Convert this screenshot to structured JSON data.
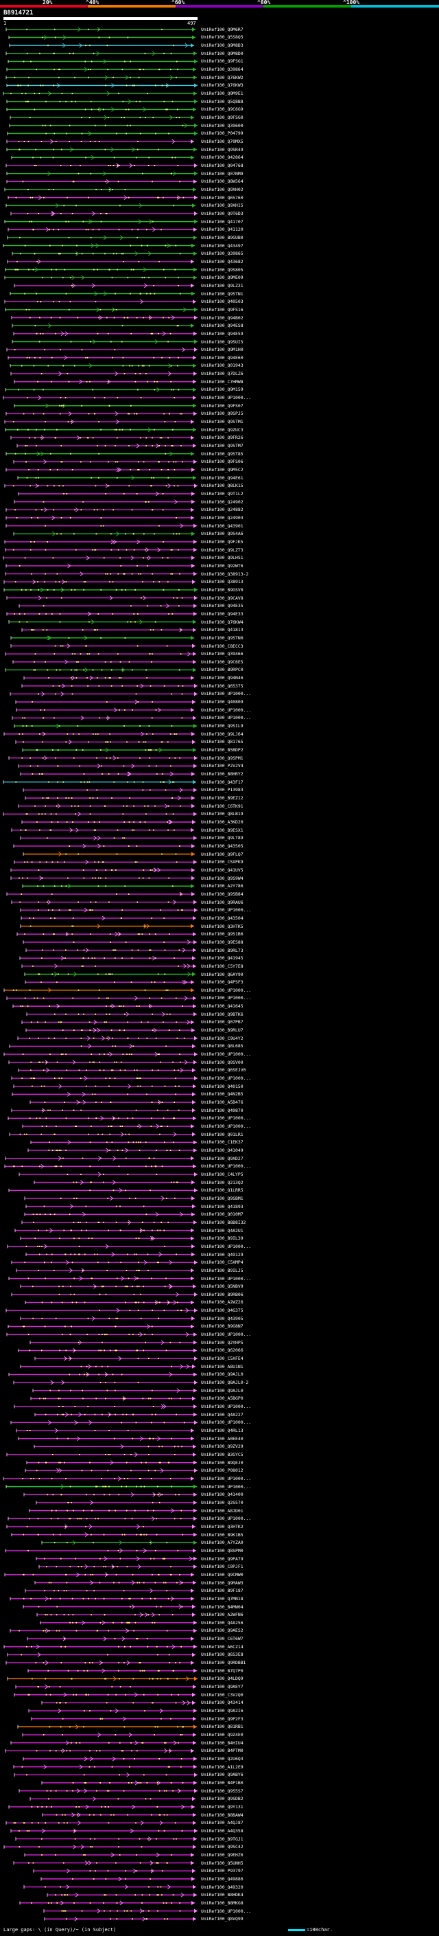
{
  "scale": {
    "labels": [
      "20%",
      "^40%",
      "^60%",
      "^80%",
      "^100%"
    ],
    "colors": {
      "p20": "#e8001c",
      "p40": "#f07a00",
      "p60": "#8a00c0",
      "p80": "#00a000",
      "p100": "#00bcd4"
    }
  },
  "query": {
    "id": "B8914721",
    "start": "1",
    "end": "497"
  },
  "palette": {
    "identity_colors": [
      "#ff7700",
      "#dd22dd",
      "#22bb22",
      "#33ccdd"
    ],
    "dot_color": "#ffff66",
    "arrow_color": "#ff88ff"
  },
  "hits": [
    {
      "label": "UniRef100_Q9M6R7",
      "color": "#22bb22"
    },
    {
      "label": "UniRef100_Q5S8Q5",
      "color": "#22bb22"
    },
    {
      "label": "UniRef100_Q9M8D3",
      "color": "#33ccdd"
    },
    {
      "label": "UniRef100_Q9M8D0",
      "color": "#22bb22"
    },
    {
      "label": "UniRef100_Q9FSG1",
      "color": "#22bb22"
    },
    {
      "label": "UniRef100_Q39864",
      "color": "#22bb22"
    },
    {
      "label": "UniRef100_Q76KW2",
      "color": "#22bb22"
    },
    {
      "label": "UniRef100_Q76KW3",
      "color": "#33ccdd"
    },
    {
      "label": "UniRef100_Q9M9E1",
      "color": "#22bb22"
    },
    {
      "label": "UniRef100_Q5Q8B8",
      "color": "#22bb22"
    },
    {
      "label": "UniRef100_Q9C6G9",
      "color": "#22bb22"
    },
    {
      "label": "UniRef100_Q9FSG0",
      "color": "#22bb22"
    },
    {
      "label": "UniRef100_Q39600",
      "color": "#22bb22"
    },
    {
      "label": "UniRef100_P04799",
      "color": "#22bb22"
    },
    {
      "label": "UniRef100_Q70MX5",
      "color": "#dd22dd"
    },
    {
      "label": "UniRef100_Q9SR49",
      "color": "#22bb22"
    },
    {
      "label": "UniRef100_Q42864",
      "color": "#22bb22"
    },
    {
      "label": "UniRef100_Q04768",
      "color": "#dd22dd"
    },
    {
      "label": "UniRef100_Q07NM9",
      "color": "#22bb22"
    },
    {
      "label": "UniRef100_Q8W564",
      "color": "#dd22dd"
    },
    {
      "label": "UniRef100_Q9XH02",
      "color": "#22bb22"
    },
    {
      "label": "UniRef100_Q65760",
      "color": "#dd22dd"
    },
    {
      "label": "UniRef100_Q9XH15",
      "color": "#22bb22"
    },
    {
      "label": "UniRef100_Q9T6D3",
      "color": "#dd22dd"
    },
    {
      "label": "UniRef100_Q41707",
      "color": "#22bb22"
    },
    {
      "label": "UniRef100_Q41120",
      "color": "#dd22dd"
    },
    {
      "label": "UniRef100_B9GUB0",
      "color": "#22bb22"
    },
    {
      "label": "UniRef100_Q43497",
      "color": "#22bb22"
    },
    {
      "label": "UniRef100_Q39865",
      "color": "#22bb22"
    },
    {
      "label": "UniRef100_Q43682",
      "color": "#dd22dd"
    },
    {
      "label": "UniRef100_Q9S805",
      "color": "#22bb22"
    },
    {
      "label": "UniRef100_Q9ME09",
      "color": "#22bb22"
    },
    {
      "label": "UniRef100_Q9LZ31",
      "color": "#dd22dd"
    },
    {
      "label": "UniRef100_Q9STN1",
      "color": "#22bb22"
    },
    {
      "label": "UniRef100_Q40503",
      "color": "#dd22dd"
    },
    {
      "label": "UniRef100_Q9FS16",
      "color": "#22bb22"
    },
    {
      "label": "UniRef100_Q94B02",
      "color": "#dd22dd"
    },
    {
      "label": "UniRef100_Q94ES8",
      "color": "#22bb22"
    },
    {
      "label": "UniRef100_Q94E59",
      "color": "#dd22dd"
    },
    {
      "label": "UniRef100_Q9SUI5",
      "color": "#22bb22"
    },
    {
      "label": "UniRef100_Q9M1H0",
      "color": "#dd22dd"
    },
    {
      "label": "UniRef100_Q94E60",
      "color": "#dd22dd"
    },
    {
      "label": "UniRef100_Q01943",
      "color": "#22bb22"
    },
    {
      "label": "UniRef100_Q7DLZ6",
      "color": "#dd22dd"
    },
    {
      "label": "UniRef100_C7HMW8",
      "color": "#dd22dd"
    },
    {
      "label": "UniRef100_Q9M159",
      "color": "#22bb22"
    },
    {
      "label": "UniRef100_UP1000...",
      "color": "#dd22dd"
    },
    {
      "label": "UniRef100_Q9FS07",
      "color": "#22bb22"
    },
    {
      "label": "UniRef100_Q9SPJ5",
      "color": "#dd22dd"
    },
    {
      "label": "UniRef100_Q9STM1",
      "color": "#dd22dd"
    },
    {
      "label": "UniRef100_Q9ZUC3",
      "color": "#22bb22"
    },
    {
      "label": "UniRef100_Q9FR26",
      "color": "#dd22dd"
    },
    {
      "label": "UniRef100_Q9STM7",
      "color": "#dd22dd"
    },
    {
      "label": "UniRef100_Q9ST85",
      "color": "#22bb22"
    },
    {
      "label": "UniRef100_Q9FS06",
      "color": "#dd22dd"
    },
    {
      "label": "UniRef100_Q9M5C2",
      "color": "#dd22dd"
    },
    {
      "label": "UniRef100_Q94E61",
      "color": "#22bb22"
    },
    {
      "label": "UniRef100_Q8LK15",
      "color": "#dd22dd"
    },
    {
      "label": "UniRef100_Q9T1L2",
      "color": "#dd22dd"
    },
    {
      "label": "UniRef100_Q24902",
      "color": "#dd22dd"
    },
    {
      "label": "UniRef100_Q24882",
      "color": "#dd22dd"
    },
    {
      "label": "UniRef100_Q24903",
      "color": "#dd22dd"
    },
    {
      "label": "UniRef100_Q43901",
      "color": "#dd22dd"
    },
    {
      "label": "UniRef100_Q9S4A6",
      "color": "#22bb22"
    },
    {
      "label": "UniRef100_Q9FJK5",
      "color": "#dd22dd"
    },
    {
      "label": "UniRef100_Q9LZT3",
      "color": "#dd22dd"
    },
    {
      "label": "UniRef100_Q9LHS1",
      "color": "#dd22dd"
    },
    {
      "label": "UniRef100_Q92WT6",
      "color": "#dd22dd"
    },
    {
      "label": "UniRef100_Q38913-2",
      "color": "#dd22dd"
    },
    {
      "label": "UniRef100_Q38913",
      "color": "#dd22dd"
    },
    {
      "label": "UniRef100_B9GSV0",
      "color": "#22bb22"
    },
    {
      "label": "UniRef100_Q9CAV8",
      "color": "#dd22dd"
    },
    {
      "label": "UniRef100_Q94E35",
      "color": "#dd22dd"
    },
    {
      "label": "UniRef100_Q94E33",
      "color": "#dd22dd"
    },
    {
      "label": "UniRef100_Q76KW4",
      "color": "#22bb22"
    },
    {
      "label": "UniRef100_Q41813",
      "color": "#dd22dd"
    },
    {
      "label": "UniRef100_Q9STN0",
      "color": "#22bb22"
    },
    {
      "label": "UniRef100_C8ECC3",
      "color": "#dd22dd"
    },
    {
      "label": "UniRef100_Q39466",
      "color": "#dd22dd"
    },
    {
      "label": "UniRef100_Q9C6E5",
      "color": "#dd22dd"
    },
    {
      "label": "UniRef100_B9RPC0",
      "color": "#22bb22"
    },
    {
      "label": "UniRef100_Q94N46",
      "color": "#dd22dd"
    },
    {
      "label": "UniRef100_Q65375",
      "color": "#dd22dd"
    },
    {
      "label": "UniRef100_UP1000...",
      "color": "#dd22dd"
    },
    {
      "label": "UniRef100_Q40809",
      "color": "#dd22dd"
    },
    {
      "label": "UniRef100_UP1000...",
      "color": "#dd22dd"
    },
    {
      "label": "UniRef100_UP1000...",
      "color": "#dd22dd"
    },
    {
      "label": "UniRef100_Q9SIL9",
      "color": "#22bb22"
    },
    {
      "label": "UniRef100_Q9LJ64",
      "color": "#dd22dd"
    },
    {
      "label": "UniRef100_Q81765",
      "color": "#dd22dd"
    },
    {
      "label": "UniRef100_B5BDP2",
      "color": "#22bb22"
    },
    {
      "label": "UniRef100_Q9SPM1",
      "color": "#dd22dd"
    },
    {
      "label": "UniRef100_P2V2V4",
      "color": "#dd22dd"
    },
    {
      "label": "UniRef100_B8HRY2",
      "color": "#dd22dd"
    },
    {
      "label": "UniRef100_Q43F17",
      "color": "#33ccdd"
    },
    {
      "label": "UniRef100_P13983",
      "color": "#dd22dd"
    },
    {
      "label": "UniRef100_B9EZ12",
      "color": "#dd22dd"
    },
    {
      "label": "UniRef100_C6TK91",
      "color": "#dd22dd"
    },
    {
      "label": "UniRef100_Q8LB19",
      "color": "#dd22dd"
    },
    {
      "label": "UniRef100_A3KD20",
      "color": "#dd22dd"
    },
    {
      "label": "UniRef100_B9ESX1",
      "color": "#dd22dd"
    },
    {
      "label": "UniRef100_Q9LT89",
      "color": "#dd22dd"
    },
    {
      "label": "UniRef100_Q43505",
      "color": "#dd22dd"
    },
    {
      "label": "UniRef100_Q9FLQ7",
      "color": "#ff7700"
    },
    {
      "label": "UniRef100_C5XPK9",
      "color": "#dd22dd"
    },
    {
      "label": "UniRef100_Q41UV5",
      "color": "#dd22dd"
    },
    {
      "label": "UniRef100_Q9S9W4",
      "color": "#dd22dd"
    },
    {
      "label": "UniRef100_A2Y786",
      "color": "#22bb22"
    },
    {
      "label": "UniRef100_Q9SB84",
      "color": "#dd22dd"
    },
    {
      "label": "UniRef100_Q9RAU6",
      "color": "#dd22dd"
    },
    {
      "label": "UniRef100_UP1000...",
      "color": "#dd22dd"
    },
    {
      "label": "UniRef100_Q43504",
      "color": "#dd22dd"
    },
    {
      "label": "UniRef100_Q3HTK5",
      "color": "#ff7700"
    },
    {
      "label": "UniRef100_Q9S1B6",
      "color": "#dd22dd"
    },
    {
      "label": "UniRef100_Q9ES88",
      "color": "#dd22dd"
    },
    {
      "label": "UniRef100_B9RL73",
      "color": "#dd22dd"
    },
    {
      "label": "UniRef100_Q41945",
      "color": "#dd22dd"
    },
    {
      "label": "UniRef100_C5Y7E8",
      "color": "#dd22dd"
    },
    {
      "label": "UniRef100_Q6AY90",
      "color": "#22bb22"
    },
    {
      "label": "UniRef100_Q4PSF3",
      "color": "#dd22dd"
    },
    {
      "label": "UniRef100_UP1000...",
      "color": "#ff7700"
    },
    {
      "label": "UniRef100_UP1000...",
      "color": "#dd22dd"
    },
    {
      "label": "UniRef100_Q41645",
      "color": "#dd22dd"
    },
    {
      "label": "UniRef100_Q9BTK6",
      "color": "#dd22dd"
    },
    {
      "label": "UniRef100_Q07PB7",
      "color": "#dd22dd"
    },
    {
      "label": "UniRef100_B9RLU7",
      "color": "#dd22dd"
    },
    {
      "label": "UniRef100_C9U4Y2",
      "color": "#dd22dd"
    },
    {
      "label": "UniRef100_Q8L685",
      "color": "#dd22dd"
    },
    {
      "label": "UniRef100_UP1000...",
      "color": "#dd22dd"
    },
    {
      "label": "UniRef100_Q9SV00",
      "color": "#dd22dd"
    },
    {
      "label": "UniRef100_Q6SEJV0",
      "color": "#dd22dd"
    },
    {
      "label": "UniRef100_UP1000...",
      "color": "#dd22dd"
    },
    {
      "label": "UniRef100_Q40150",
      "color": "#dd22dd"
    },
    {
      "label": "UniRef100_Q4N2B5",
      "color": "#dd22dd"
    },
    {
      "label": "UniRef100_A5B476",
      "color": "#dd22dd"
    },
    {
      "label": "UniRef100_Q49870",
      "color": "#dd22dd"
    },
    {
      "label": "UniRef100_UP1000...",
      "color": "#dd22dd"
    },
    {
      "label": "UniRef100_UP1000...",
      "color": "#dd22dd"
    },
    {
      "label": "UniRef100_Q01LR1",
      "color": "#dd22dd"
    },
    {
      "label": "UniRef100_C1EK37",
      "color": "#dd22dd"
    },
    {
      "label": "UniRef100_Q41049",
      "color": "#dd22dd"
    },
    {
      "label": "UniRef100_Q9XD27",
      "color": "#dd22dd"
    },
    {
      "label": "UniRef100_UP1000...",
      "color": "#dd22dd"
    },
    {
      "label": "UniRef100_C4LYP5",
      "color": "#dd22dd"
    },
    {
      "label": "UniRef100_Q213Q2",
      "color": "#dd22dd"
    },
    {
      "label": "UniRef100_Q1LRR5",
      "color": "#dd22dd"
    },
    {
      "label": "UniRef100_Q9SBM1",
      "color": "#dd22dd"
    },
    {
      "label": "UniRef100_Q41893",
      "color": "#dd22dd"
    },
    {
      "label": "UniRef100_Q010M7",
      "color": "#dd22dd"
    },
    {
      "label": "UniRef100_B8B8I32",
      "color": "#dd22dd"
    },
    {
      "label": "UniRef100_Q4A2U1",
      "color": "#dd22dd"
    },
    {
      "label": "UniRef100_B9IL39",
      "color": "#dd22dd"
    },
    {
      "label": "UniRef100_UP1000...",
      "color": "#dd22dd"
    },
    {
      "label": "UniRef100_Q49129",
      "color": "#dd22dd"
    },
    {
      "label": "UniRef100_C5XMP4",
      "color": "#dd22dd"
    },
    {
      "label": "UniRef100_B9ILJ5",
      "color": "#dd22dd"
    },
    {
      "label": "UniRef100_UP1000...",
      "color": "#dd22dd"
    },
    {
      "label": "UniRef100_Q5NBV9",
      "color": "#dd22dd"
    },
    {
      "label": "UniRef100_B9RB06",
      "color": "#dd22dd"
    },
    {
      "label": "UniRef100_A2WZ26",
      "color": "#dd22dd"
    },
    {
      "label": "UniRef100_Q4G375",
      "color": "#dd22dd"
    },
    {
      "label": "UniRef100_Q43905",
      "color": "#dd22dd"
    },
    {
      "label": "UniRef100_B9G8N7",
      "color": "#dd22dd"
    },
    {
      "label": "UniRef100_UP1000...",
      "color": "#dd22dd"
    },
    {
      "label": "UniRef100_Q2YHP5",
      "color": "#dd22dd"
    },
    {
      "label": "UniRef100_Q62066",
      "color": "#dd22dd"
    },
    {
      "label": "UniRef100_C5XFE4",
      "color": "#dd22dd"
    },
    {
      "label": "UniRef100_A8U1N1",
      "color": "#dd22dd"
    },
    {
      "label": "UniRef100_Q9AJL0",
      "color": "#dd22dd"
    },
    {
      "label": "UniRef100_Q8AJL0-2",
      "color": "#dd22dd"
    },
    {
      "label": "UniRef100_Q9AJL0",
      "color": "#dd22dd"
    },
    {
      "label": "UniRef100_A5BGP0",
      "color": "#dd22dd"
    },
    {
      "label": "UniRef100_UP1000...",
      "color": "#dd22dd"
    },
    {
      "label": "UniRef100_Q4A227",
      "color": "#dd22dd"
    },
    {
      "label": "UniRef100_UP1000...",
      "color": "#dd22dd"
    },
    {
      "label": "UniRef100_Q4RL13",
      "color": "#dd22dd"
    },
    {
      "label": "UniRef100_A0EE40",
      "color": "#dd22dd"
    },
    {
      "label": "UniRef100_Q9ZV29",
      "color": "#dd22dd"
    },
    {
      "label": "UniRef100_B3GYC5",
      "color": "#dd22dd"
    },
    {
      "label": "UniRef100_B9QEJ0",
      "color": "#dd22dd"
    },
    {
      "label": "UniRef100_P08012",
      "color": "#dd22dd"
    },
    {
      "label": "UniRef100_UP1000...",
      "color": "#dd22dd"
    },
    {
      "label": "UniRef100_UP1000...",
      "color": "#22bb22"
    },
    {
      "label": "UniRef100_Q41400",
      "color": "#dd22dd"
    },
    {
      "label": "UniRef100_Q2S570",
      "color": "#dd22dd"
    },
    {
      "label": "UniRef100_A8JD01",
      "color": "#dd22dd"
    },
    {
      "label": "UniRef100_UP1000...",
      "color": "#dd22dd"
    },
    {
      "label": "UniRef100_Q3HTK2",
      "color": "#dd22dd"
    },
    {
      "label": "UniRef100_B9K1B5",
      "color": "#dd22dd"
    },
    {
      "label": "UniRef100_A7YZA0",
      "color": "#22bb22"
    },
    {
      "label": "UniRef100_Q8SPM0",
      "color": "#dd22dd"
    },
    {
      "label": "UniRef100_Q9PA79",
      "color": "#dd22dd"
    },
    {
      "label": "UniRef100_C0PJF1",
      "color": "#dd22dd"
    },
    {
      "label": "UniRef100_Q9CMW0",
      "color": "#dd22dd"
    },
    {
      "label": "UniRef100_Q9MAW3",
      "color": "#dd22dd"
    },
    {
      "label": "UniRef100_B9F187",
      "color": "#dd22dd"
    },
    {
      "label": "UniRef100_Q7MN18",
      "color": "#dd22dd"
    },
    {
      "label": "UniRef100_B4MW04",
      "color": "#dd22dd"
    },
    {
      "label": "UniRef100_A2WFN6",
      "color": "#dd22dd"
    },
    {
      "label": "UniRef100_Q4A256",
      "color": "#dd22dd"
    },
    {
      "label": "UniRef100_Q9AES2",
      "color": "#dd22dd"
    },
    {
      "label": "UniRef100_C6T6W7",
      "color": "#dd22dd"
    },
    {
      "label": "UniRef100_A6CZ14",
      "color": "#dd22dd"
    },
    {
      "label": "UniRef100_Q6S3E8",
      "color": "#dd22dd"
    },
    {
      "label": "UniRef100_Q9RDBB1",
      "color": "#dd22dd"
    },
    {
      "label": "UniRef100_B7Q7P0",
      "color": "#dd22dd"
    },
    {
      "label": "UniRef100_Q4LDQ9",
      "color": "#ff7700"
    },
    {
      "label": "UniRef100_Q9AEY7",
      "color": "#dd22dd"
    },
    {
      "label": "UniRef100_C3V2Q0",
      "color": "#dd22dd"
    },
    {
      "label": "UniRef100_Q43414",
      "color": "#dd22dd"
    },
    {
      "label": "UniRef100_Q9A2I6",
      "color": "#dd22dd"
    },
    {
      "label": "UniRef100_Q9P2F3",
      "color": "#dd22dd"
    },
    {
      "label": "UniRef100_Q81RB1",
      "color": "#ff7700"
    },
    {
      "label": "UniRef100_Q9Z4E0",
      "color": "#dd22dd"
    },
    {
      "label": "UniRef100_B4HIU4",
      "color": "#dd22dd"
    },
    {
      "label": "UniRef100_B4PTM0",
      "color": "#dd22dd"
    },
    {
      "label": "UniRef100_Q2U6Q3",
      "color": "#dd22dd"
    },
    {
      "label": "UniRef100_A1L2E9",
      "color": "#dd22dd"
    },
    {
      "label": "UniRef100_Q9ABY6",
      "color": "#dd22dd"
    },
    {
      "label": "UniRef100_B4P1B0",
      "color": "#dd22dd"
    },
    {
      "label": "UniRef100_Q9S5S7",
      "color": "#dd22dd"
    },
    {
      "label": "UniRef100_Q9SDB2",
      "color": "#dd22dd"
    },
    {
      "label": "UniRef100_Q9Y131",
      "color": "#dd22dd"
    },
    {
      "label": "UniRef100_B8BAW4",
      "color": "#dd22dd"
    },
    {
      "label": "UniRef100_A4QJ87",
      "color": "#dd22dd"
    },
    {
      "label": "UniRef100_A4Q358",
      "color": "#dd22dd"
    },
    {
      "label": "UniRef100_B9TGJ1",
      "color": "#dd22dd"
    },
    {
      "label": "UniRef100_Q9SC42",
      "color": "#dd22dd"
    },
    {
      "label": "UniRef100_Q9EHZ6",
      "color": "#dd22dd"
    },
    {
      "label": "UniRef100_Q5UNH5",
      "color": "#dd22dd"
    },
    {
      "label": "UniRef100_P93797",
      "color": "#dd22dd"
    },
    {
      "label": "UniRef100_Q49886",
      "color": "#dd22dd"
    },
    {
      "label": "UniRef100_Q49320",
      "color": "#dd22dd"
    },
    {
      "label": "UniRef100_B8HDK4",
      "color": "#dd22dd"
    },
    {
      "label": "UniRef100_B8MKG8",
      "color": "#dd22dd"
    },
    {
      "label": "UniRef100_UP1000...",
      "color": "#dd22dd"
    },
    {
      "label": "UniRef100_Q8VQ99",
      "color": "#dd22dd"
    }
  ],
  "footer": {
    "text": "Large gaps: \\ (in Query)/~ (in Subject)",
    "legend": "=100char."
  }
}
